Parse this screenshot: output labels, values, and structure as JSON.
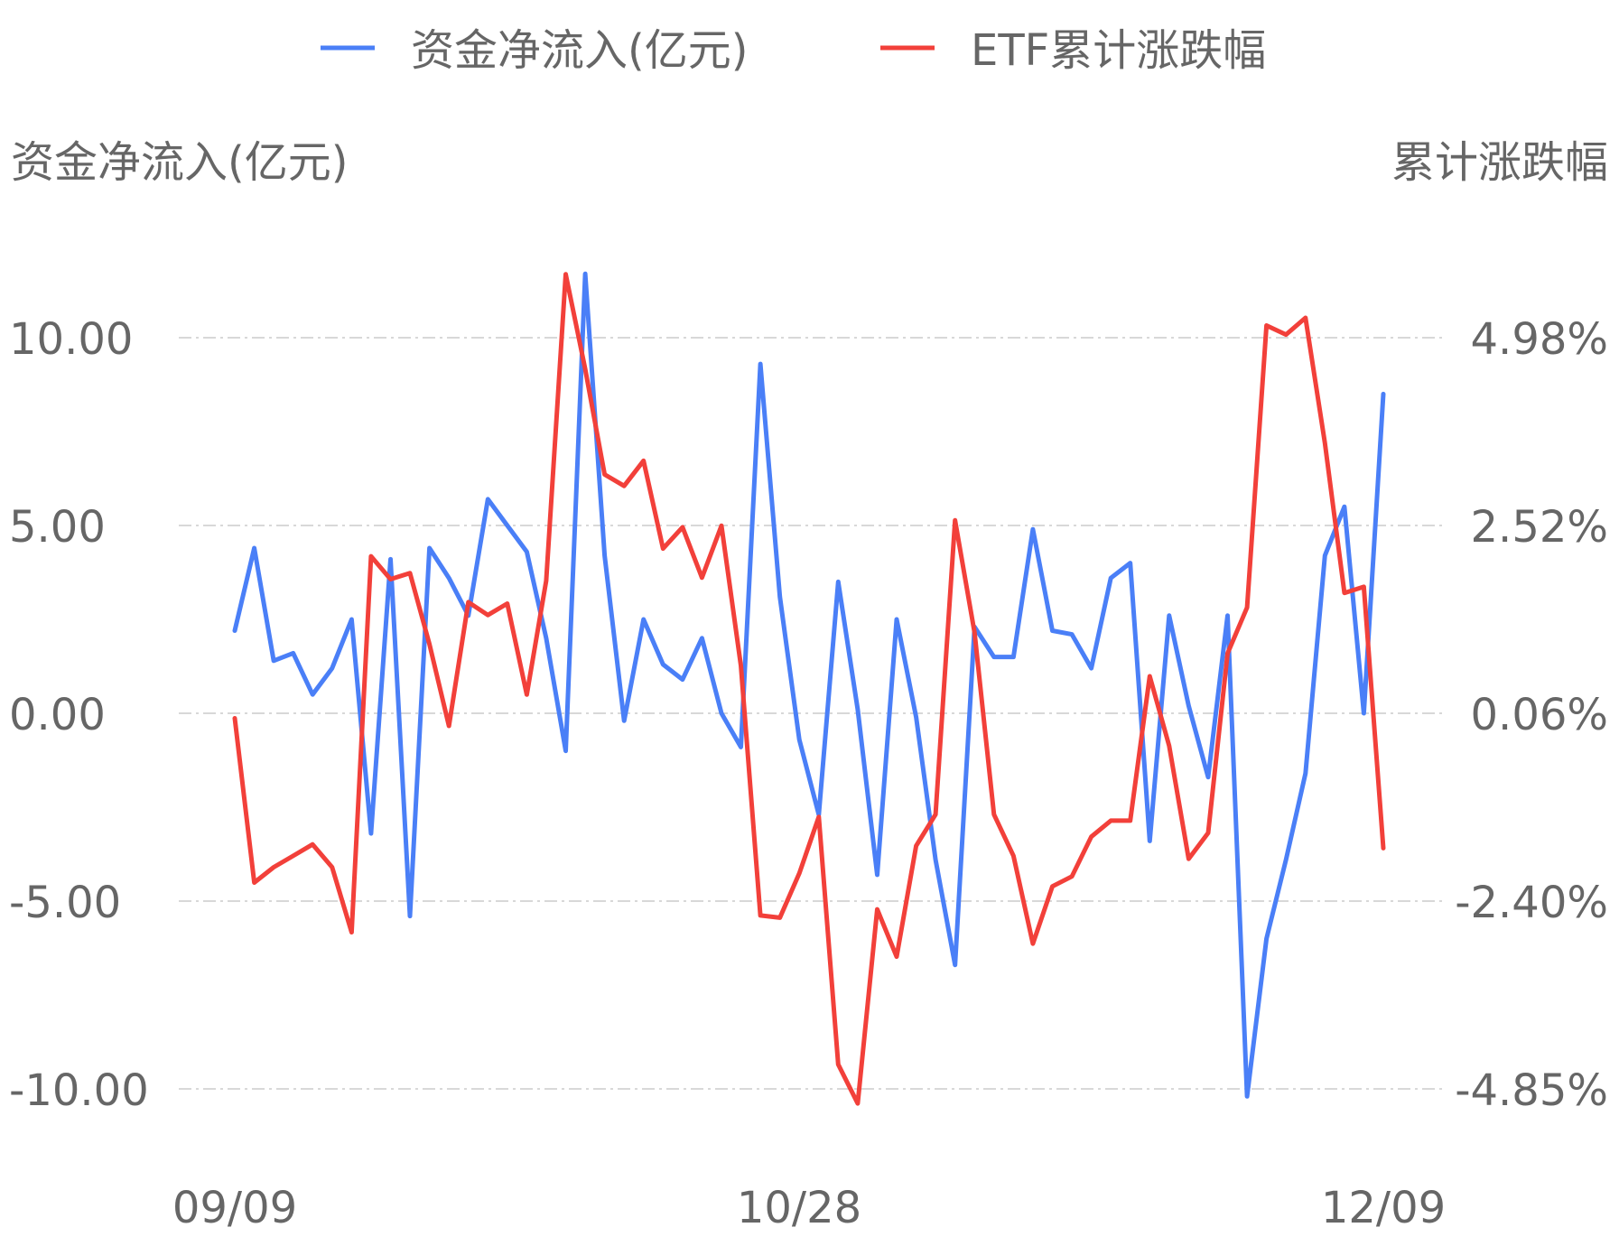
{
  "chart_data": {
    "type": "line",
    "legend": {
      "placement": "top-center",
      "items": [
        "资金净流入(亿元)",
        "ETF累计涨跌幅"
      ]
    },
    "y_left": {
      "title": "资金净流入(亿元)",
      "ticks": [
        "10.00",
        "5.00",
        "0.00",
        "-5.00",
        "-10.00"
      ],
      "range": [
        -10,
        10
      ]
    },
    "y_right": {
      "title": "累计涨跌幅",
      "ticks": [
        "4.98%",
        "2.52%",
        "0.06%",
        "-2.40%",
        "-4.85%"
      ],
      "range": [
        -4.85,
        4.98
      ],
      "unit": "%"
    },
    "x_ticks": [
      "09/09",
      "10/28",
      "12/09"
    ],
    "grid": "horizontal-dashed",
    "series": [
      {
        "name": "资金净流入(亿元)",
        "axis": "left",
        "color": "#4a7ff7",
        "values": [
          2.2,
          4.4,
          1.4,
          1.6,
          0.5,
          1.2,
          2.5,
          -3.2,
          4.1,
          -5.4,
          4.4,
          3.6,
          2.6,
          5.7,
          5.0,
          4.3,
          2.0,
          -1.0,
          11.7,
          4.2,
          -0.2,
          2.5,
          1.3,
          0.9,
          2.0,
          0.0,
          -0.9,
          9.3,
          3.1,
          -0.7,
          -2.7,
          3.5,
          0.1,
          -4.3,
          2.5,
          -0.1,
          -3.9,
          -6.7,
          2.3,
          1.5,
          1.5,
          4.9,
          2.2,
          2.1,
          1.2,
          3.6,
          4.0,
          -3.4,
          2.6,
          0.2,
          -1.7,
          2.6,
          -10.2,
          -6.0,
          -3.9,
          -1.6,
          4.2,
          5.5,
          0.0,
          8.5
        ]
      },
      {
        "name": "ETF累计涨跌幅",
        "axis": "right",
        "color": "#f2403a",
        "values": [
          0.0,
          -2.15,
          -1.95,
          -1.8,
          -1.65,
          -1.95,
          -2.8,
          2.12,
          1.82,
          1.9,
          0.97,
          -0.1,
          1.52,
          1.35,
          1.5,
          0.31,
          1.8,
          5.81,
          4.57,
          3.19,
          3.04,
          3.37,
          2.22,
          2.5,
          1.84,
          2.52,
          0.69,
          -2.58,
          -2.61,
          -2.03,
          -1.29,
          -4.53,
          -5.04,
          -2.5,
          -3.12,
          -1.67,
          -1.26,
          2.59,
          1.12,
          -1.26,
          -1.8,
          -2.95,
          -2.2,
          -2.07,
          -1.55,
          -1.34,
          -1.34,
          0.55,
          -0.36,
          -1.84,
          -1.5,
          0.85,
          1.45,
          5.14,
          5.02,
          5.24,
          3.6,
          1.64,
          1.72,
          -1.7
        ]
      }
    ]
  }
}
